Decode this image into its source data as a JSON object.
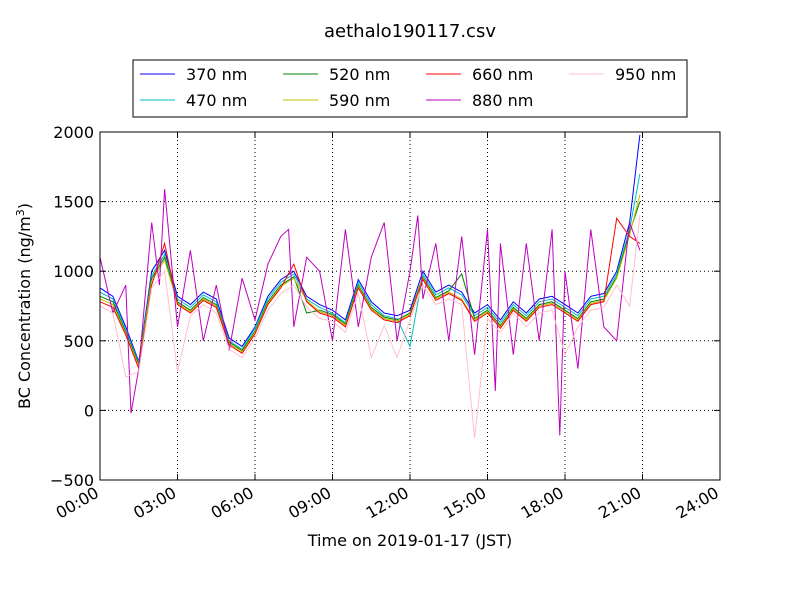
{
  "chart_data": {
    "type": "line",
    "title": "aethalo190117.csv",
    "xlabel": "Time on 2019-01-17 (JST)",
    "ylabel_main": "BC Concentration (ng/m",
    "ylabel_sup": "3",
    "ylabel_end": ")",
    "xlim": [
      0,
      24
    ],
    "ylim": [
      -500,
      2000
    ],
    "x_ticks": [
      0,
      3,
      6,
      9,
      12,
      15,
      18,
      21,
      24
    ],
    "x_tick_labels": [
      "00:00",
      "03:00",
      "06:00",
      "09:00",
      "12:00",
      "15:00",
      "18:00",
      "21:00",
      "24:00"
    ],
    "y_ticks": [
      -500,
      0,
      500,
      1000,
      1500,
      2000
    ],
    "y_tick_labels": [
      "−500",
      "0",
      "500",
      "1000",
      "1500",
      "2000"
    ],
    "grid": true,
    "legend_position": "top-center",
    "legend_columns": 4,
    "series": [
      {
        "name": "370 nm",
        "color": "#0000ff",
        "x": [
          0,
          0.5,
          1,
          1.5,
          2,
          2.5,
          3,
          3.5,
          4,
          4.5,
          5,
          5.5,
          6,
          6.5,
          7,
          7.5,
          8,
          8.5,
          9,
          9.5,
          10,
          10.5,
          11,
          11.5,
          12,
          12.5,
          13,
          13.5,
          14,
          14.5,
          15,
          15.5,
          16,
          16.5,
          17,
          17.5,
          18,
          18.5,
          19,
          19.5,
          20,
          20.5,
          20.9
        ],
        "y": [
          880,
          820,
          600,
          350,
          1000,
          1150,
          820,
          760,
          850,
          800,
          520,
          460,
          600,
          820,
          940,
          1000,
          820,
          760,
          720,
          650,
          940,
          780,
          700,
          680,
          720,
          1000,
          850,
          900,
          850,
          700,
          760,
          650,
          780,
          700,
          800,
          820,
          760,
          700,
          820,
          840,
          1000,
          1350,
          1980
        ]
      },
      {
        "name": "470 nm",
        "color": "#00bfbf",
        "x": [
          0,
          0.5,
          1,
          1.5,
          2,
          2.5,
          3,
          3.5,
          4,
          4.5,
          5,
          5.5,
          6,
          6.5,
          7,
          7.5,
          8,
          8.5,
          9,
          9.5,
          10,
          10.5,
          11,
          11.5,
          12,
          12.5,
          13,
          13.5,
          14,
          14.5,
          15,
          15.5,
          16,
          16.5,
          17,
          17.5,
          18,
          18.5,
          19,
          19.5,
          20,
          20.5,
          20.9
        ],
        "y": [
          850,
          800,
          580,
          340,
          970,
          1120,
          800,
          740,
          830,
          780,
          500,
          440,
          590,
          800,
          920,
          980,
          800,
          740,
          700,
          630,
          920,
          760,
          680,
          660,
          460,
          980,
          830,
          880,
          830,
          680,
          740,
          630,
          760,
          680,
          780,
          800,
          740,
          680,
          800,
          820,
          980,
          1300,
          1700
        ]
      },
      {
        "name": "520 nm",
        "color": "#008000",
        "x": [
          0,
          0.5,
          1,
          1.5,
          2,
          2.5,
          3,
          3.5,
          4,
          4.5,
          5,
          5.5,
          6,
          6.5,
          7,
          7.5,
          8,
          8.5,
          9,
          9.5,
          10,
          10.5,
          11,
          11.5,
          12,
          12.5,
          13,
          13.5,
          14,
          14.5,
          15,
          15.5,
          16,
          16.5,
          17,
          17.5,
          18,
          18.5,
          19,
          19.5,
          20,
          20.5,
          20.9
        ],
        "y": [
          820,
          780,
          560,
          330,
          950,
          1100,
          780,
          720,
          810,
          760,
          490,
          430,
          570,
          780,
          900,
          960,
          700,
          720,
          690,
          620,
          900,
          740,
          670,
          650,
          700,
          960,
          810,
          860,
          980,
          660,
          720,
          610,
          740,
          660,
          760,
          780,
          720,
          660,
          780,
          800,
          960,
          1280,
          1500
        ]
      },
      {
        "name": "590 nm",
        "color": "#bfbf00",
        "x": [
          0,
          0.5,
          1,
          1.5,
          2,
          2.5,
          3,
          3.5,
          4,
          4.5,
          5,
          5.5,
          6,
          6.5,
          7,
          7.5,
          8,
          8.5,
          9,
          9.5,
          10,
          10.5,
          11,
          11.5,
          12,
          12.5,
          13,
          13.5,
          14,
          14.5,
          15,
          15.5,
          16,
          16.5,
          17,
          17.5,
          18,
          18.5,
          19,
          19.5,
          20,
          20.5,
          20.9
        ],
        "y": [
          800,
          760,
          550,
          320,
          930,
          1080,
          770,
          710,
          800,
          750,
          480,
          420,
          560,
          770,
          890,
          950,
          790,
          710,
          680,
          610,
          890,
          730,
          660,
          640,
          690,
          950,
          800,
          850,
          800,
          650,
          710,
          600,
          730,
          650,
          750,
          770,
          710,
          650,
          770,
          790,
          950,
          1260,
          1550
        ]
      },
      {
        "name": "660 nm",
        "color": "#ff0000",
        "x": [
          0,
          0.5,
          1,
          1.5,
          2,
          2.5,
          3,
          3.5,
          4,
          4.5,
          5,
          5.5,
          6,
          6.5,
          7,
          7.5,
          8,
          8.5,
          9,
          9.5,
          10,
          10.5,
          11,
          11.5,
          12,
          12.5,
          13,
          13.5,
          14,
          14.5,
          15,
          15.5,
          16,
          16.5,
          17,
          17.5,
          18,
          18.5,
          19,
          19.5,
          20,
          20.5,
          20.9
        ],
        "y": [
          780,
          740,
          540,
          300,
          900,
          1200,
          760,
          700,
          790,
          740,
          470,
          410,
          550,
          760,
          880,
          1050,
          780,
          700,
          670,
          600,
          880,
          720,
          650,
          630,
          680,
          940,
          790,
          840,
          790,
          640,
          700,
          590,
          720,
          640,
          740,
          760,
          700,
          640,
          760,
          780,
          1380,
          1250,
          1200
        ]
      },
      {
        "name": "880 nm",
        "color": "#bf00bf",
        "x": [
          0,
          0.5,
          1,
          1.2,
          1.5,
          2,
          2.3,
          2.5,
          3,
          3.5,
          4,
          4.5,
          5,
          5.5,
          6,
          6.5,
          7,
          7.3,
          7.5,
          8,
          8.5,
          9,
          9.5,
          10,
          10.5,
          11,
          11.5,
          12,
          12.3,
          12.5,
          13,
          13.5,
          14,
          14.5,
          15,
          15.3,
          15.5,
          16,
          16.5,
          17,
          17.5,
          17.8,
          18,
          18.5,
          19,
          19.5,
          20,
          20.5,
          20.9
        ],
        "y": [
          1100,
          700,
          900,
          -20,
          300,
          1350,
          900,
          1590,
          600,
          1150,
          500,
          900,
          430,
          950,
          650,
          1050,
          1250,
          1300,
          600,
          1100,
          1000,
          500,
          1300,
          600,
          1100,
          1350,
          500,
          1000,
          1400,
          800,
          1200,
          500,
          1250,
          400,
          1300,
          140,
          1200,
          400,
          1200,
          500,
          1300,
          -180,
          1000,
          300,
          1300,
          600,
          500,
          1350,
          1150
        ]
      },
      {
        "name": "950 nm",
        "color": "#ffc0cb",
        "x": [
          0,
          0.5,
          1,
          1.5,
          2,
          2.5,
          3,
          3.5,
          4,
          4.5,
          5,
          5.5,
          6,
          6.5,
          7,
          7.5,
          8,
          8.5,
          9,
          9.5,
          10,
          10.5,
          11,
          11.5,
          12,
          12.5,
          13,
          13.5,
          14,
          14.5,
          15,
          15.5,
          16,
          16.5,
          17,
          17.5,
          18,
          18.5,
          19,
          19.5,
          20,
          20.5,
          20.9
        ],
        "y": [
          750,
          700,
          240,
          280,
          880,
          1000,
          280,
          680,
          760,
          700,
          440,
          380,
          520,
          720,
          840,
          900,
          740,
          660,
          640,
          560,
          840,
          380,
          610,
          380,
          650,
          900,
          760,
          800,
          760,
          -200,
          660,
          560,
          700,
          600,
          700,
          720,
          400,
          600,
          720,
          740,
          900,
          750,
          1400
        ]
      }
    ]
  }
}
